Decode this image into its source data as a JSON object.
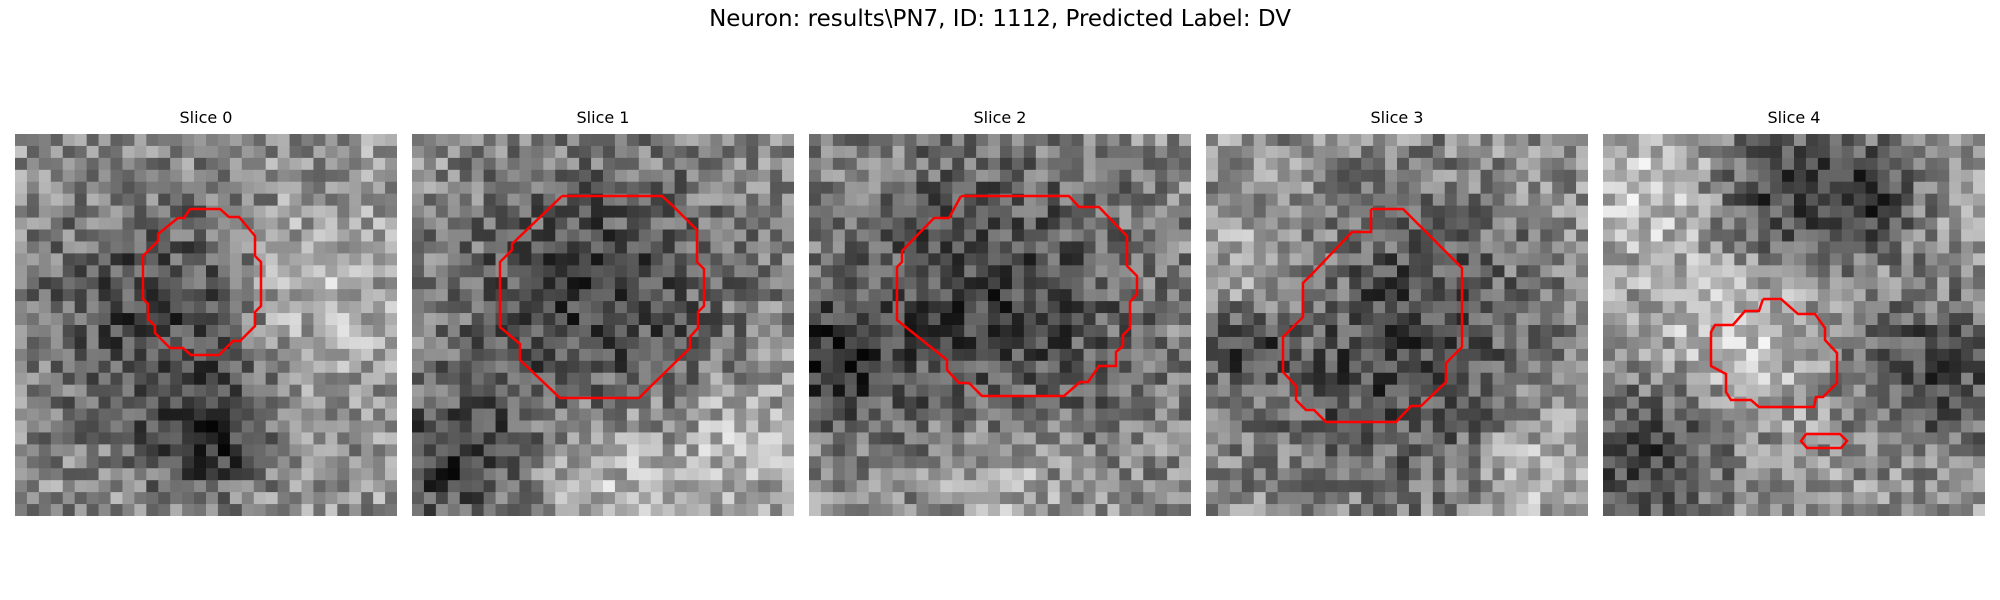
{
  "figure": {
    "title": "Neuron: results\\PN7, ID: 1112, Predicted Label: DV"
  },
  "slices": [
    {
      "title": "Slice 0"
    },
    {
      "title": "Slice 1"
    },
    {
      "title": "Slice 2"
    },
    {
      "title": "Slice 3"
    },
    {
      "title": "Slice 4"
    }
  ],
  "contour_color": "#ff0000",
  "image_colormap": "gray"
}
